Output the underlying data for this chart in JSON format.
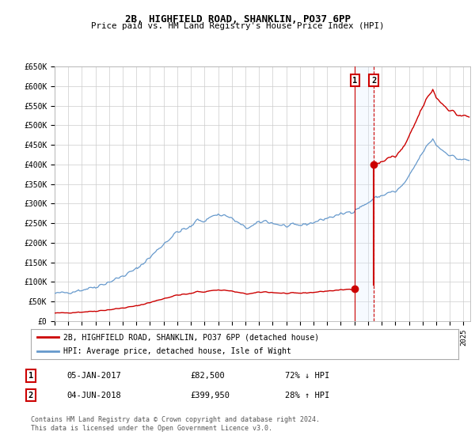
{
  "title": "2B, HIGHFIELD ROAD, SHANKLIN, PO37 6PP",
  "subtitle": "Price paid vs. HM Land Registry's House Price Index (HPI)",
  "ylim": [
    0,
    650000
  ],
  "yticks": [
    0,
    50000,
    100000,
    150000,
    200000,
    250000,
    300000,
    350000,
    400000,
    450000,
    500000,
    550000,
    600000,
    650000
  ],
  "ytick_labels": [
    "£0",
    "£50K",
    "£100K",
    "£150K",
    "£200K",
    "£250K",
    "£300K",
    "£350K",
    "£400K",
    "£450K",
    "£500K",
    "£550K",
    "£600K",
    "£650K"
  ],
  "xlim_start": 1995.0,
  "xlim_end": 2025.5,
  "transaction1_date": 2017.04,
  "transaction1_price": 82500,
  "transaction2_date": 2018.42,
  "transaction2_price": 399950,
  "legend_label1": "2B, HIGHFIELD ROAD, SHANKLIN, PO37 6PP (detached house)",
  "legend_label2": "HPI: Average price, detached house, Isle of Wight",
  "table_row1_num": "1",
  "table_row1_date": "05-JAN-2017",
  "table_row1_price": "£82,500",
  "table_row1_hpi": "72% ↓ HPI",
  "table_row2_num": "2",
  "table_row2_date": "04-JUN-2018",
  "table_row2_price": "£399,950",
  "table_row2_hpi": "28% ↑ HPI",
  "footer": "Contains HM Land Registry data © Crown copyright and database right 2024.\nThis data is licensed under the Open Government Licence v3.0.",
  "line1_color": "#cc0000",
  "line2_color": "#6699cc",
  "vline1_color": "#cc0000",
  "vline2_color": "#cc0000",
  "vspan_color": "#ddeeff",
  "background_color": "#ffffff",
  "grid_color": "#cccccc"
}
